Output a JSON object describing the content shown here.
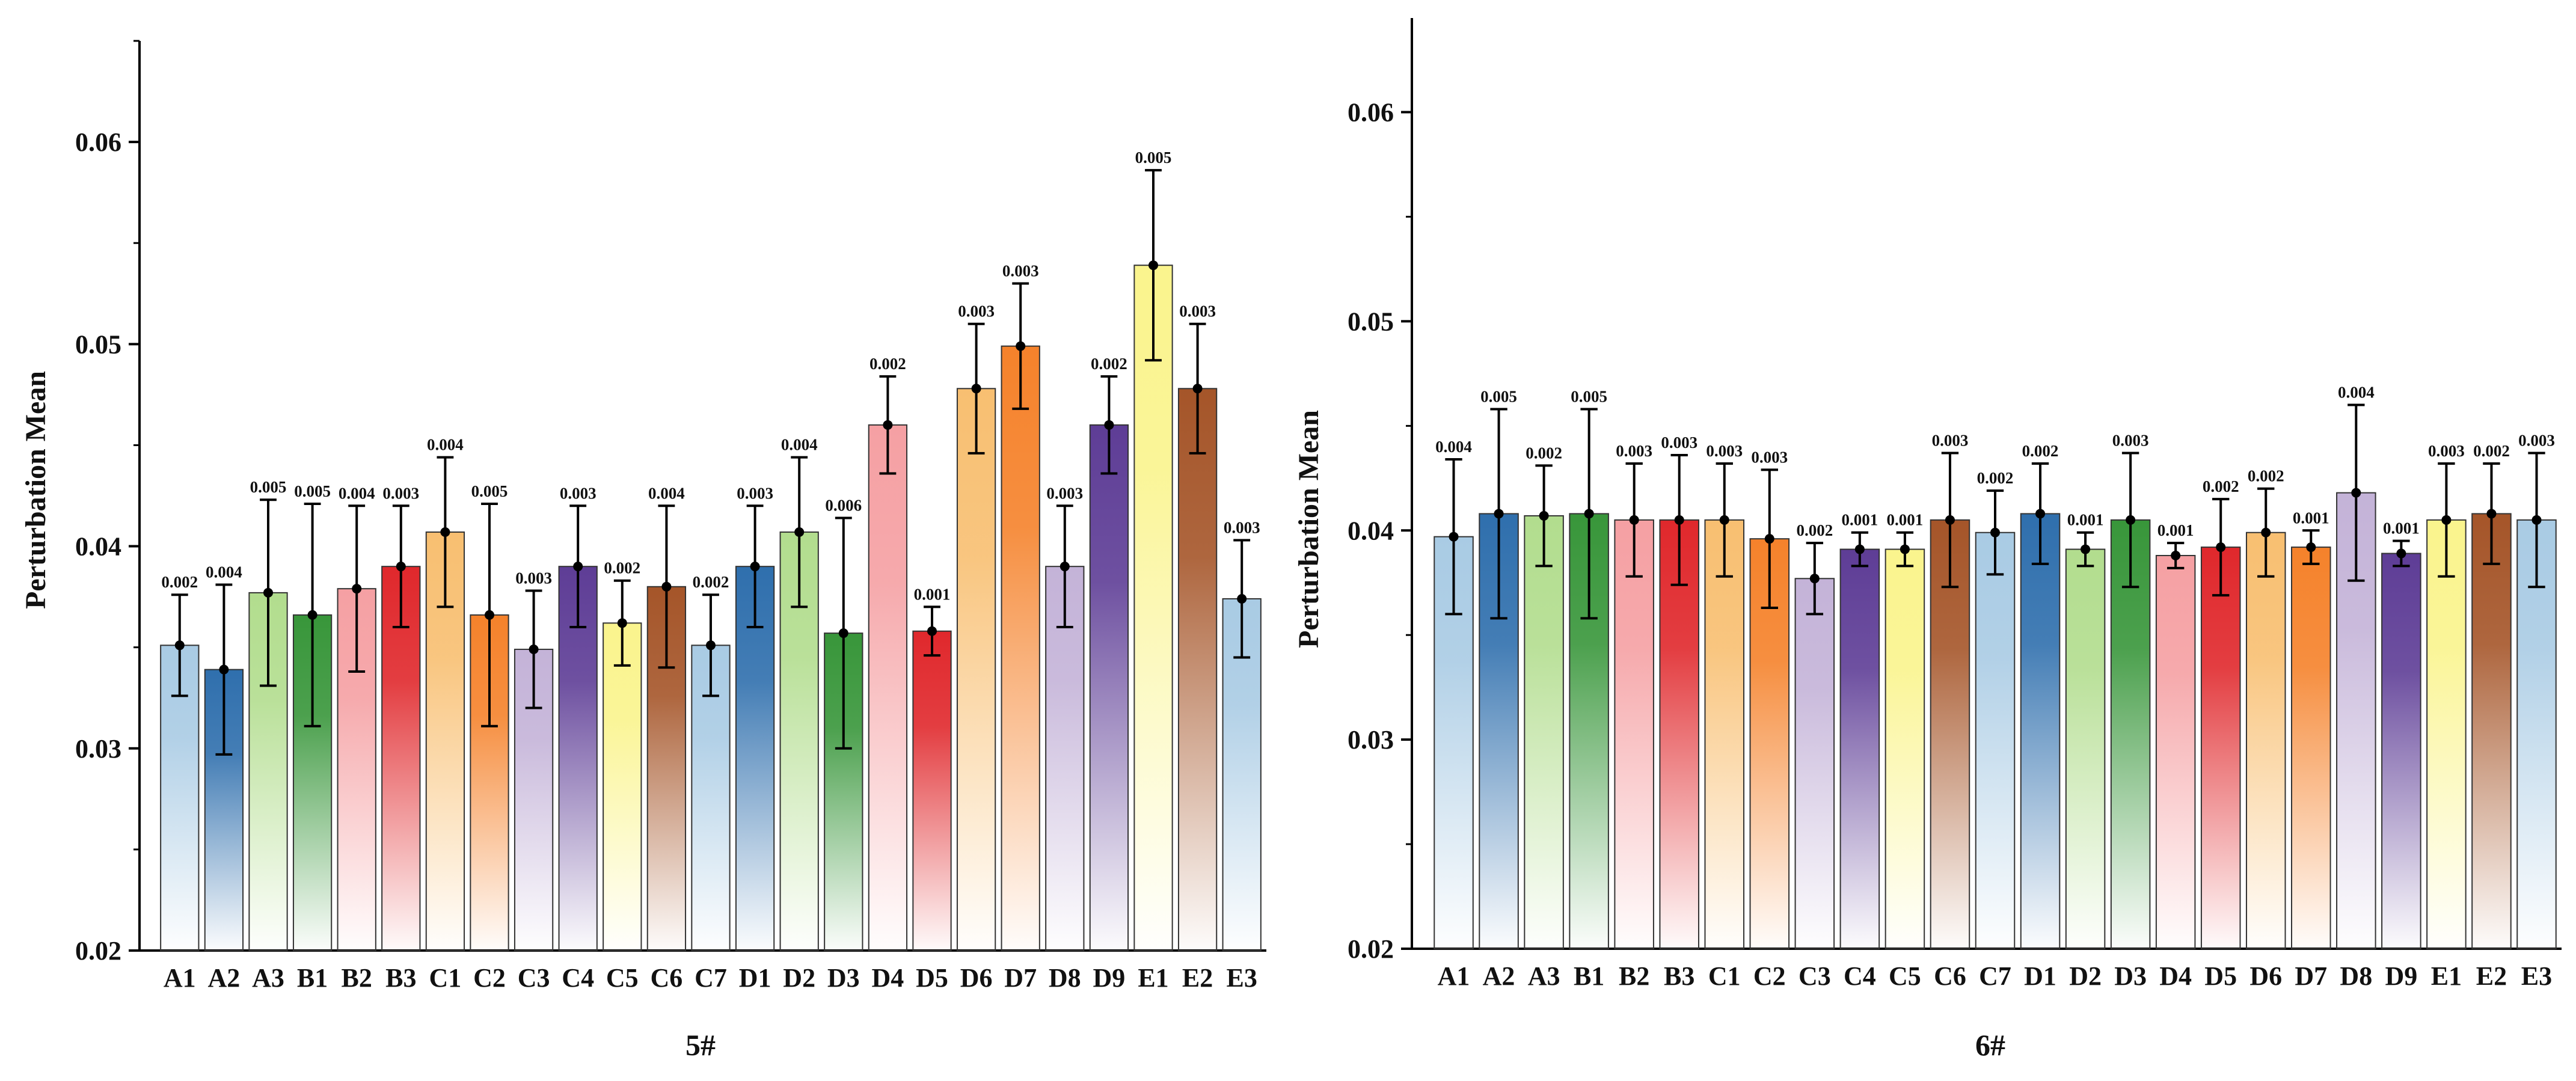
{
  "chart_data": [
    {
      "type": "bar",
      "title": "",
      "xlabel": "5#",
      "ylabel": "Perturbation Mean",
      "ylim": [
        0.02,
        0.065
      ],
      "yticks": [
        "0.02",
        "0.03",
        "0.04",
        "0.05",
        "0.06"
      ],
      "ytick_values": [
        0.02,
        0.03,
        0.04,
        0.05,
        0.06
      ],
      "grid": false,
      "categories": [
        "A1",
        "A2",
        "A3",
        "B1",
        "B2",
        "B3",
        "C1",
        "C2",
        "C3",
        "C4",
        "C5",
        "C6",
        "C7",
        "D1",
        "D2",
        "D3",
        "D4",
        "D5",
        "D6",
        "D7",
        "D8",
        "D9",
        "E1",
        "E2",
        "E3"
      ],
      "values": [
        0.0351,
        0.0339,
        0.0377,
        0.0366,
        0.0379,
        0.039,
        0.0407,
        0.0366,
        0.0349,
        0.039,
        0.0362,
        0.038,
        0.0351,
        0.039,
        0.0407,
        0.0357,
        0.046,
        0.0358,
        0.0478,
        0.0499,
        0.039,
        0.046,
        0.0539,
        0.0478,
        0.0374
      ],
      "errors": [
        0.0025,
        0.0042,
        0.0046,
        0.0055,
        0.0041,
        0.003,
        0.0037,
        0.0055,
        0.0029,
        0.003,
        0.0021,
        0.004,
        0.0025,
        0.003,
        0.0037,
        0.0057,
        0.0024,
        0.0012,
        0.0032,
        0.0031,
        0.003,
        0.0024,
        0.0047,
        0.0032,
        0.0029
      ],
      "error_labels": [
        "0.002",
        "0.004",
        "0.005",
        "0.005",
        "0.004",
        "0.003",
        "0.004",
        "0.005",
        "0.003",
        "0.003",
        "0.002",
        "0.004",
        "0.002",
        "0.003",
        "0.004",
        "0.006",
        "0.002",
        "0.001",
        "0.003",
        "0.003",
        "0.003",
        "0.002",
        "0.005",
        "0.003",
        "0.003"
      ],
      "colors": [
        "#a9cbe4",
        "#2f6fad",
        "#b2dd8e",
        "#38963a",
        "#f5a0a3",
        "#e0282c",
        "#f8bf71",
        "#f5822b",
        "#c4b3d8",
        "#5e3d96",
        "#faf48d",
        "#a55529",
        "#a9cbe4",
        "#2f6fad",
        "#b2dd8e",
        "#38963a",
        "#f5a0a3",
        "#e0282c",
        "#f8bf71",
        "#f5822b",
        "#c4b3d8",
        "#5e3d96",
        "#faf48d",
        "#a55529",
        "#a9cbe4"
      ]
    },
    {
      "type": "bar",
      "title": "",
      "xlabel": "6#",
      "ylabel": "Perturbation Mean",
      "ylim": [
        0.02,
        0.0645
      ],
      "yticks": [
        "0.02",
        "0.03",
        "0.04",
        "0.05",
        "0.06"
      ],
      "ytick_values": [
        0.02,
        0.03,
        0.04,
        0.05,
        0.06
      ],
      "grid": false,
      "categories": [
        "A1",
        "A2",
        "A3",
        "B1",
        "B2",
        "B3",
        "C1",
        "C2",
        "C3",
        "C4",
        "C5",
        "C6",
        "C7",
        "D1",
        "D2",
        "D3",
        "D4",
        "D5",
        "D6",
        "D7",
        "D8",
        "D9",
        "E1",
        "E2",
        "E3"
      ],
      "values": [
        0.0397,
        0.0408,
        0.0407,
        0.0408,
        0.0405,
        0.0405,
        0.0405,
        0.0396,
        0.0377,
        0.0391,
        0.0391,
        0.0405,
        0.0399,
        0.0408,
        0.0391,
        0.0405,
        0.0388,
        0.0392,
        0.0399,
        0.0392,
        0.0418,
        0.0389,
        0.0405,
        0.0408,
        0.0405
      ],
      "errors": [
        0.0037,
        0.005,
        0.0024,
        0.005,
        0.0027,
        0.0031,
        0.0027,
        0.0033,
        0.0017,
        0.0008,
        0.0008,
        0.0032,
        0.002,
        0.0024,
        0.0008,
        0.0032,
        0.0006,
        0.0023,
        0.0021,
        0.0008,
        0.0042,
        0.0006,
        0.0027,
        0.0024,
        0.0032
      ],
      "error_labels": [
        "0.004",
        "0.005",
        "0.002",
        "0.005",
        "0.003",
        "0.003",
        "0.003",
        "0.003",
        "0.002",
        "0.001",
        "0.001",
        "0.003",
        "0.002",
        "0.002",
        "0.001",
        "0.003",
        "0.001",
        "0.002",
        "0.002",
        "0.001",
        "0.004",
        "0.001",
        "0.003",
        "0.002",
        "0.003"
      ],
      "colors": [
        "#a9cbe4",
        "#2f6fad",
        "#b2dd8e",
        "#38963a",
        "#f5a0a3",
        "#e0282c",
        "#f8bf71",
        "#f5822b",
        "#c4b3d8",
        "#5e3d96",
        "#faf48d",
        "#a55529",
        "#a9cbe4",
        "#2f6fad",
        "#b2dd8e",
        "#38963a",
        "#f5a0a3",
        "#e0282c",
        "#f8bf71",
        "#f5822b",
        "#c4b3d8",
        "#5e3d96",
        "#faf48d",
        "#a55529",
        "#a9cbe4"
      ]
    }
  ]
}
